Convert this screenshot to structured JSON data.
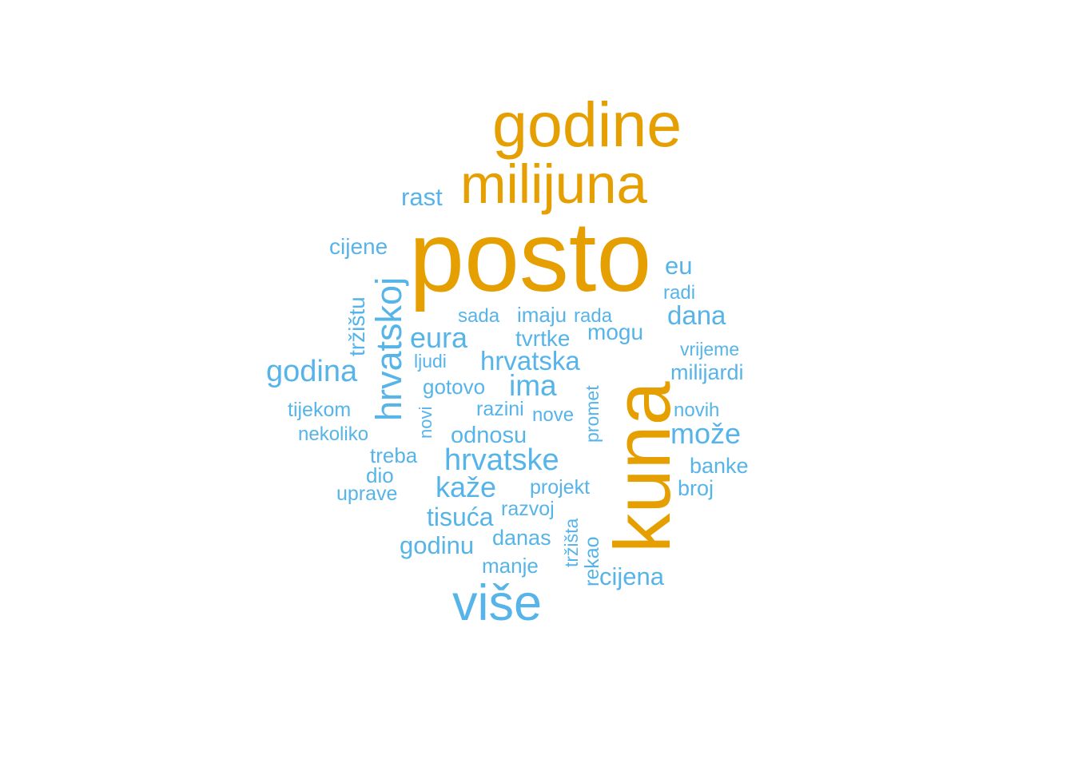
{
  "colors": {
    "major": "#E69F00",
    "minor": "#56B4E9",
    "background": "#FFFFFF"
  },
  "words": {
    "godine": "godine",
    "milijuna": "milijuna",
    "rast": "rast",
    "posto": "posto",
    "cijene": "cijene",
    "hrvatskoj": "hrvatskoj",
    "eu": "eu",
    "radi": "radi",
    "trzistu": "tržištu",
    "sada": "sada",
    "imaju": "imaju",
    "rada": "rada",
    "dana": "dana",
    "eura": "eura",
    "tvrtke": "tvrtke",
    "mogu": "mogu",
    "vrijeme": "vrijeme",
    "ljudi": "ljudi",
    "hrvatska": "hrvatska",
    "godina": "godina",
    "milijardi": "milijardi",
    "gotovo": "gotovo",
    "ima": "ima",
    "kuna": "kuna",
    "tijekom": "tijekom",
    "novi": "novi",
    "razini": "razini",
    "nove": "nove",
    "promet": "promet",
    "novih": "novih",
    "nekoliko": "nekoliko",
    "odnosu": "odnosu",
    "moze": "može",
    "treba": "treba",
    "hrvatske": "hrvatske",
    "banke": "banke",
    "dio": "dio",
    "kaze": "kaže",
    "projekt": "projekt",
    "broj": "broj",
    "uprave": "uprave",
    "razvoj": "razvoj",
    "tisuca": "tisuća",
    "trzista": "tržišta",
    "danas": "danas",
    "godinu": "godinu",
    "rekao": "rekao",
    "manje": "manje",
    "cijena": "cijena",
    "vise": "više"
  }
}
